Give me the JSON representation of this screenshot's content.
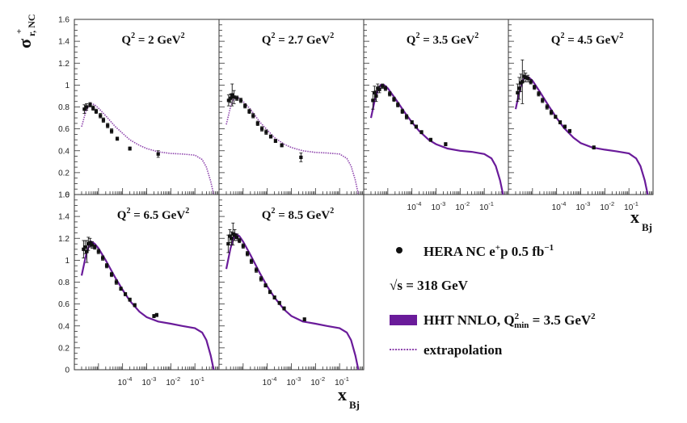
{
  "figure": {
    "ylabel_base": "σ",
    "ylabel_sup": "+",
    "ylabel_sub": "r, NC",
    "xlabel_base": "x",
    "xlabel_sub": "Bj"
  },
  "legend": {
    "data": {
      "text": "HERA NC e",
      "sup": "+",
      "text2": "p 0.5 fb",
      "sup2": "−1"
    },
    "energy": {
      "text": "√s = 318 GeV"
    },
    "fit": {
      "text": "HHT NNLO, Q",
      "sup": "2",
      "sub": "min",
      "text2": " = 3.5 GeV",
      "sup2": "2"
    },
    "extrap": {
      "text": "extrapolation"
    }
  },
  "colors": {
    "fit": "#6a1b9a",
    "extrapolation": "#8e44ad",
    "data": "#111111",
    "frame": "#333333"
  },
  "chart_data": {
    "type": "scatter",
    "xscale": "log",
    "xlim": [
      1e-06,
      1
    ],
    "ylim": [
      0,
      1.6
    ],
    "yticks": [
      "0",
      "0.2",
      "0.4",
      "0.6",
      "0.8",
      "1",
      "1.2",
      "1.4",
      "1.6"
    ],
    "xticks": [
      {
        "base": "10",
        "exp": "-4"
      },
      {
        "base": "10",
        "exp": "-3"
      },
      {
        "base": "10",
        "exp": "-2"
      },
      {
        "base": "10",
        "exp": "-1"
      }
    ],
    "panels": [
      {
        "title": "Q",
        "title_sup": "2",
        "title_val": " = 2 GeV",
        "title_unit_sup": "2",
        "curve_style": "extrapolation",
        "curve": [
          [
            2e-06,
            0.62
          ],
          [
            3e-06,
            0.76
          ],
          [
            4e-06,
            0.81
          ],
          [
            5e-06,
            0.83
          ],
          [
            7e-06,
            0.82
          ],
          [
            1e-05,
            0.79
          ],
          [
            2e-05,
            0.72
          ],
          [
            5e-05,
            0.62
          ],
          [
            0.0001,
            0.56
          ],
          [
            0.0002,
            0.5
          ],
          [
            0.0005,
            0.45
          ],
          [
            0.001,
            0.42
          ],
          [
            0.003,
            0.39
          ],
          [
            0.01,
            0.375
          ],
          [
            0.03,
            0.37
          ],
          [
            0.1,
            0.36
          ],
          [
            0.2,
            0.32
          ],
          [
            0.3,
            0.25
          ],
          [
            0.45,
            0.12
          ],
          [
            0.6,
            0.0
          ]
        ],
        "points": [
          [
            2.6e-06,
            0.78,
            0.04
          ],
          [
            3.2e-06,
            0.8,
            0.03
          ],
          [
            4.5e-06,
            0.82,
            0.02
          ],
          [
            6e-06,
            0.79,
            0.02
          ],
          [
            8e-06,
            0.76,
            0.02
          ],
          [
            1.2e-05,
            0.72,
            0.02
          ],
          [
            1.6e-05,
            0.68,
            0.02
          ],
          [
            2.4e-05,
            0.63,
            0.02
          ],
          [
            3.5e-05,
            0.58,
            0.02
          ],
          [
            6e-05,
            0.51,
            0.015
          ],
          [
            0.0002,
            0.42,
            0.015
          ],
          [
            0.003,
            0.37,
            0.03
          ]
        ]
      },
      {
        "title": "Q",
        "title_sup": "2",
        "title_val": " = 2.7 GeV",
        "title_unit_sup": "2",
        "curve_style": "extrapolation",
        "curve": [
          [
            2e-06,
            0.64
          ],
          [
            3e-06,
            0.8
          ],
          [
            4e-06,
            0.87
          ],
          [
            5e-06,
            0.89
          ],
          [
            7e-06,
            0.88
          ],
          [
            1e-05,
            0.85
          ],
          [
            2e-05,
            0.78
          ],
          [
            5e-05,
            0.66
          ],
          [
            0.0001,
            0.59
          ],
          [
            0.0002,
            0.52
          ],
          [
            0.0005,
            0.46
          ],
          [
            0.001,
            0.43
          ],
          [
            0.003,
            0.4
          ],
          [
            0.01,
            0.385
          ],
          [
            0.03,
            0.38
          ],
          [
            0.1,
            0.37
          ],
          [
            0.2,
            0.33
          ],
          [
            0.3,
            0.26
          ],
          [
            0.45,
            0.13
          ],
          [
            0.6,
            0.0
          ]
        ],
        "points": [
          [
            2.5e-06,
            0.86,
            0.05
          ],
          [
            3e-06,
            0.88,
            0.04
          ],
          [
            3.5e-06,
            0.91,
            0.1
          ],
          [
            4.2e-06,
            0.89,
            0.06
          ],
          [
            5.5e-06,
            0.88,
            0.02
          ],
          [
            8e-06,
            0.86,
            0.02
          ],
          [
            1.2e-05,
            0.81,
            0.02
          ],
          [
            1.8e-05,
            0.76,
            0.02
          ],
          [
            2.6e-05,
            0.72,
            0.02
          ],
          [
            4e-05,
            0.65,
            0.02
          ],
          [
            6e-05,
            0.6,
            0.02
          ],
          [
            9e-05,
            0.57,
            0.02
          ],
          [
            0.00014,
            0.53,
            0.015
          ],
          [
            0.00022,
            0.49,
            0.015
          ],
          [
            0.0004,
            0.45,
            0.015
          ],
          [
            0.0025,
            0.34,
            0.04
          ]
        ]
      },
      {
        "title": "Q",
        "title_sup": "2",
        "title_val": " = 3.5 GeV",
        "title_unit_sup": "2",
        "curve_style": "fit",
        "curve": [
          [
            2e-06,
            0.7
          ],
          [
            3e-06,
            0.88
          ],
          [
            4e-06,
            0.96
          ],
          [
            5e-06,
            1.0
          ],
          [
            7e-06,
            1.0
          ],
          [
            1e-05,
            0.97
          ],
          [
            2e-05,
            0.88
          ],
          [
            5e-05,
            0.75
          ],
          [
            0.0001,
            0.66
          ],
          [
            0.0002,
            0.58
          ],
          [
            0.0005,
            0.5
          ],
          [
            0.001,
            0.46
          ],
          [
            0.003,
            0.42
          ],
          [
            0.01,
            0.4
          ],
          [
            0.03,
            0.39
          ],
          [
            0.1,
            0.37
          ],
          [
            0.2,
            0.33
          ],
          [
            0.3,
            0.26
          ],
          [
            0.45,
            0.13
          ],
          [
            0.6,
            0.0
          ]
        ],
        "points": [
          [
            2.4e-06,
            0.86,
            0.08
          ],
          [
            2.8e-06,
            0.93,
            0.06
          ],
          [
            3.3e-06,
            0.9,
            0.05
          ],
          [
            3.8e-06,
            0.97,
            0.04
          ],
          [
            4.5e-06,
            0.96,
            0.03
          ],
          [
            6e-06,
            0.99,
            0.02
          ],
          [
            8e-06,
            0.97,
            0.02
          ],
          [
            1.2e-05,
            0.92,
            0.02
          ],
          [
            1.8e-05,
            0.87,
            0.02
          ],
          [
            2.6e-05,
            0.82,
            0.02
          ],
          [
            4e-05,
            0.76,
            0.02
          ],
          [
            6e-05,
            0.71,
            0.02
          ],
          [
            0.0001,
            0.66,
            0.015
          ],
          [
            0.00015,
            0.62,
            0.015
          ],
          [
            0.00025,
            0.57,
            0.015
          ],
          [
            0.0006,
            0.5,
            0.015
          ],
          [
            0.0025,
            0.46,
            0.015
          ]
        ]
      },
      {
        "title": "Q",
        "title_sup": "2",
        "title_val": " = 4.5 GeV",
        "title_unit_sup": "2",
        "curve_style": "fit",
        "curve": [
          [
            2e-06,
            0.78
          ],
          [
            3e-06,
            0.96
          ],
          [
            4e-06,
            1.04
          ],
          [
            5e-06,
            1.08
          ],
          [
            7e-06,
            1.07
          ],
          [
            1e-05,
            1.04
          ],
          [
            2e-05,
            0.94
          ],
          [
            5e-05,
            0.8
          ],
          [
            0.0001,
            0.7
          ],
          [
            0.0002,
            0.61
          ],
          [
            0.0005,
            0.52
          ],
          [
            0.001,
            0.47
          ],
          [
            0.003,
            0.43
          ],
          [
            0.01,
            0.41
          ],
          [
            0.03,
            0.395
          ],
          [
            0.1,
            0.375
          ],
          [
            0.2,
            0.33
          ],
          [
            0.3,
            0.26
          ],
          [
            0.45,
            0.13
          ],
          [
            0.6,
            0.0
          ]
        ],
        "points": [
          [
            2.4e-06,
            0.93,
            0.08
          ],
          [
            2.8e-06,
            0.97,
            0.1
          ],
          [
            3.3e-06,
            1.02,
            0.08
          ],
          [
            3.8e-06,
            1.03,
            0.2
          ],
          [
            4.4e-06,
            1.08,
            0.05
          ],
          [
            5.2e-06,
            1.07,
            0.04
          ],
          [
            6.5e-06,
            1.06,
            0.03
          ],
          [
            8.5e-06,
            1.03,
            0.02
          ],
          [
            1.2e-05,
            0.98,
            0.02
          ],
          [
            1.8e-05,
            0.92,
            0.02
          ],
          [
            2.6e-05,
            0.86,
            0.02
          ],
          [
            4e-05,
            0.8,
            0.02
          ],
          [
            6e-05,
            0.75,
            0.02
          ],
          [
            9e-05,
            0.71,
            0.015
          ],
          [
            0.00014,
            0.66,
            0.015
          ],
          [
            0.00022,
            0.62,
            0.015
          ],
          [
            0.00035,
            0.58,
            0.015
          ],
          [
            0.0035,
            0.43,
            0.015
          ]
        ]
      },
      {
        "title": "Q",
        "title_sup": "2",
        "title_val": " = 6.5 GeV",
        "title_unit_sup": "2",
        "curve_style": "fit",
        "curve": [
          [
            2e-06,
            0.86
          ],
          [
            3e-06,
            1.04
          ],
          [
            4e-06,
            1.13
          ],
          [
            5e-06,
            1.17
          ],
          [
            7e-06,
            1.15
          ],
          [
            1e-05,
            1.11
          ],
          [
            2e-05,
            1.0
          ],
          [
            5e-05,
            0.84
          ],
          [
            0.0001,
            0.73
          ],
          [
            0.0002,
            0.63
          ],
          [
            0.0005,
            0.53
          ],
          [
            0.001,
            0.48
          ],
          [
            0.003,
            0.44
          ],
          [
            0.01,
            0.42
          ],
          [
            0.03,
            0.4
          ],
          [
            0.1,
            0.38
          ],
          [
            0.2,
            0.34
          ],
          [
            0.3,
            0.27
          ],
          [
            0.45,
            0.13
          ],
          [
            0.6,
            0.0
          ]
        ],
        "points": [
          [
            2.4e-06,
            1.1,
            0.08
          ],
          [
            2.8e-06,
            1.12,
            0.06
          ],
          [
            3.3e-06,
            1.08,
            0.1
          ],
          [
            3.8e-06,
            1.15,
            0.06
          ],
          [
            4.5e-06,
            1.16,
            0.04
          ],
          [
            5.5e-06,
            1.14,
            0.03
          ],
          [
            7e-06,
            1.12,
            0.02
          ],
          [
            1e-05,
            1.08,
            0.02
          ],
          [
            1.5e-05,
            1.02,
            0.02
          ],
          [
            2.2e-05,
            0.95,
            0.02
          ],
          [
            3.5e-05,
            0.87,
            0.02
          ],
          [
            5.5e-05,
            0.8,
            0.02
          ],
          [
            8.5e-05,
            0.74,
            0.015
          ],
          [
            0.00013,
            0.69,
            0.015
          ],
          [
            0.0002,
            0.64,
            0.015
          ],
          [
            0.00032,
            0.59,
            0.015
          ],
          [
            0.002,
            0.49,
            0.015
          ],
          [
            0.0026,
            0.5,
            0.015
          ]
        ]
      },
      {
        "title": "Q",
        "title_sup": "2",
        "title_val": " = 8.5 GeV",
        "title_unit_sup": "2",
        "curve_style": "fit",
        "curve": [
          [
            2e-06,
            0.92
          ],
          [
            3e-06,
            1.11
          ],
          [
            4e-06,
            1.2
          ],
          [
            5e-06,
            1.24
          ],
          [
            7e-06,
            1.22
          ],
          [
            1e-05,
            1.17
          ],
          [
            2e-05,
            1.05
          ],
          [
            5e-05,
            0.88
          ],
          [
            0.0001,
            0.76
          ],
          [
            0.0002,
            0.66
          ],
          [
            0.0005,
            0.55
          ],
          [
            0.001,
            0.49
          ],
          [
            0.003,
            0.44
          ],
          [
            0.01,
            0.42
          ],
          [
            0.03,
            0.4
          ],
          [
            0.1,
            0.38
          ],
          [
            0.2,
            0.34
          ],
          [
            0.3,
            0.27
          ],
          [
            0.45,
            0.13
          ],
          [
            0.6,
            0.0
          ]
        ],
        "points": [
          [
            2.4e-06,
            1.15,
            0.08
          ],
          [
            2.8e-06,
            1.22,
            0.06
          ],
          [
            3.3e-06,
            1.2,
            0.06
          ],
          [
            3.8e-06,
            1.24,
            0.1
          ],
          [
            4.5e-06,
            1.23,
            0.05
          ],
          [
            5.5e-06,
            1.21,
            0.03
          ],
          [
            7e-06,
            1.18,
            0.02
          ],
          [
            1e-05,
            1.13,
            0.02
          ],
          [
            1.5e-05,
            1.06,
            0.02
          ],
          [
            2.2e-05,
            0.99,
            0.02
          ],
          [
            3.5e-05,
            0.91,
            0.02
          ],
          [
            5.5e-05,
            0.83,
            0.02
          ],
          [
            8.5e-05,
            0.77,
            0.015
          ],
          [
            0.00013,
            0.71,
            0.015
          ],
          [
            0.0002,
            0.66,
            0.015
          ],
          [
            0.00032,
            0.61,
            0.015
          ],
          [
            0.0005,
            0.56,
            0.015
          ],
          [
            0.0035,
            0.46,
            0.015
          ]
        ]
      }
    ]
  }
}
